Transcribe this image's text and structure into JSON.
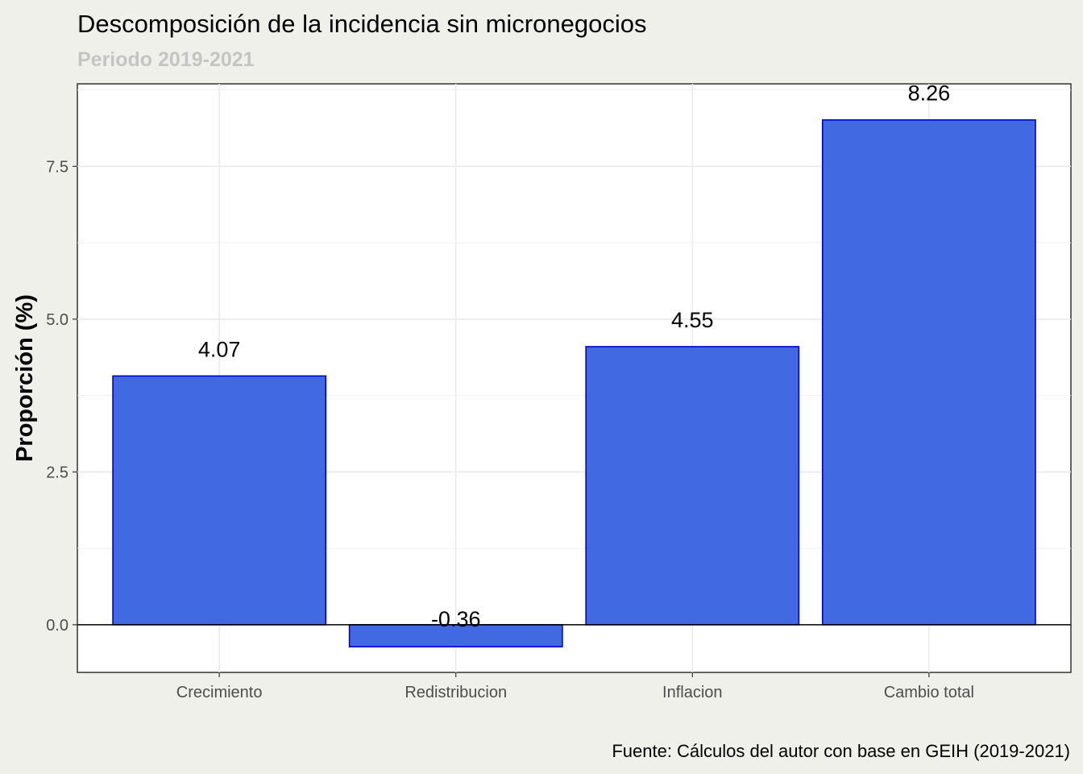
{
  "chart_data": {
    "type": "bar",
    "title": "Descomposición de la incidencia sin micronegocios",
    "subtitle": "Periodo 2019-2021",
    "caption": "Fuente: Cálculos del autor con base en GEIH (2019-2021)",
    "xlabel": "",
    "ylabel": "Proporción (%)",
    "categories": [
      "Crecimiento",
      "Redistribucion",
      "Inflacion",
      "Cambio total"
    ],
    "values": [
      4.07,
      -0.36,
      4.55,
      8.26
    ],
    "value_labels": [
      "4.07",
      "-0.36",
      "4.55",
      "8.26"
    ],
    "ylim": [
      -0.78,
      8.85
    ],
    "yticks": [
      0,
      2.5,
      5,
      7.5
    ],
    "ytick_labels": [
      "0.0",
      "2.5",
      "5.0",
      "7.5"
    ],
    "grid": true,
    "bar_fill": "#4169e1",
    "bar_stroke": "#0000cd",
    "zero_line_color": "#000000"
  }
}
